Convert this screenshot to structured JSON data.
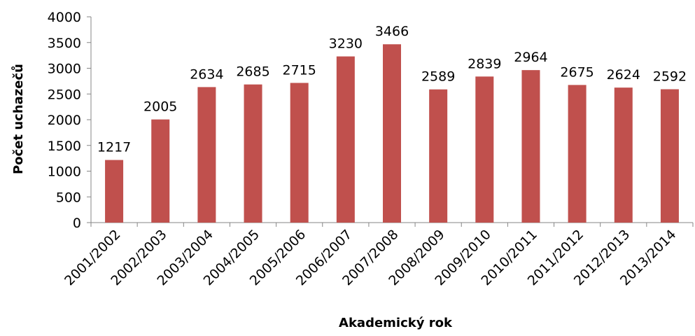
{
  "chart_data": {
    "type": "bar",
    "xlabel": "Akademický rok",
    "ylabel": "Počet uchazečů",
    "categories": [
      "2001/2002",
      "2002/2003",
      "2003/2004",
      "2004/2005",
      "2005/2006",
      "2006/2007",
      "2007/2008",
      "2008/2009",
      "2009/2010",
      "2010/2011",
      "2011/2012",
      "2012/2013",
      "2013/2014"
    ],
    "values": [
      1217,
      2005,
      2634,
      2685,
      2715,
      3230,
      3466,
      2589,
      2839,
      2964,
      2675,
      2624,
      2592
    ],
    "color": "#c0504d",
    "ylim": [
      0,
      4000
    ],
    "yticks": [
      0,
      500,
      1000,
      1500,
      2000,
      2500,
      3000,
      3500,
      4000
    ],
    "grid": false
  }
}
